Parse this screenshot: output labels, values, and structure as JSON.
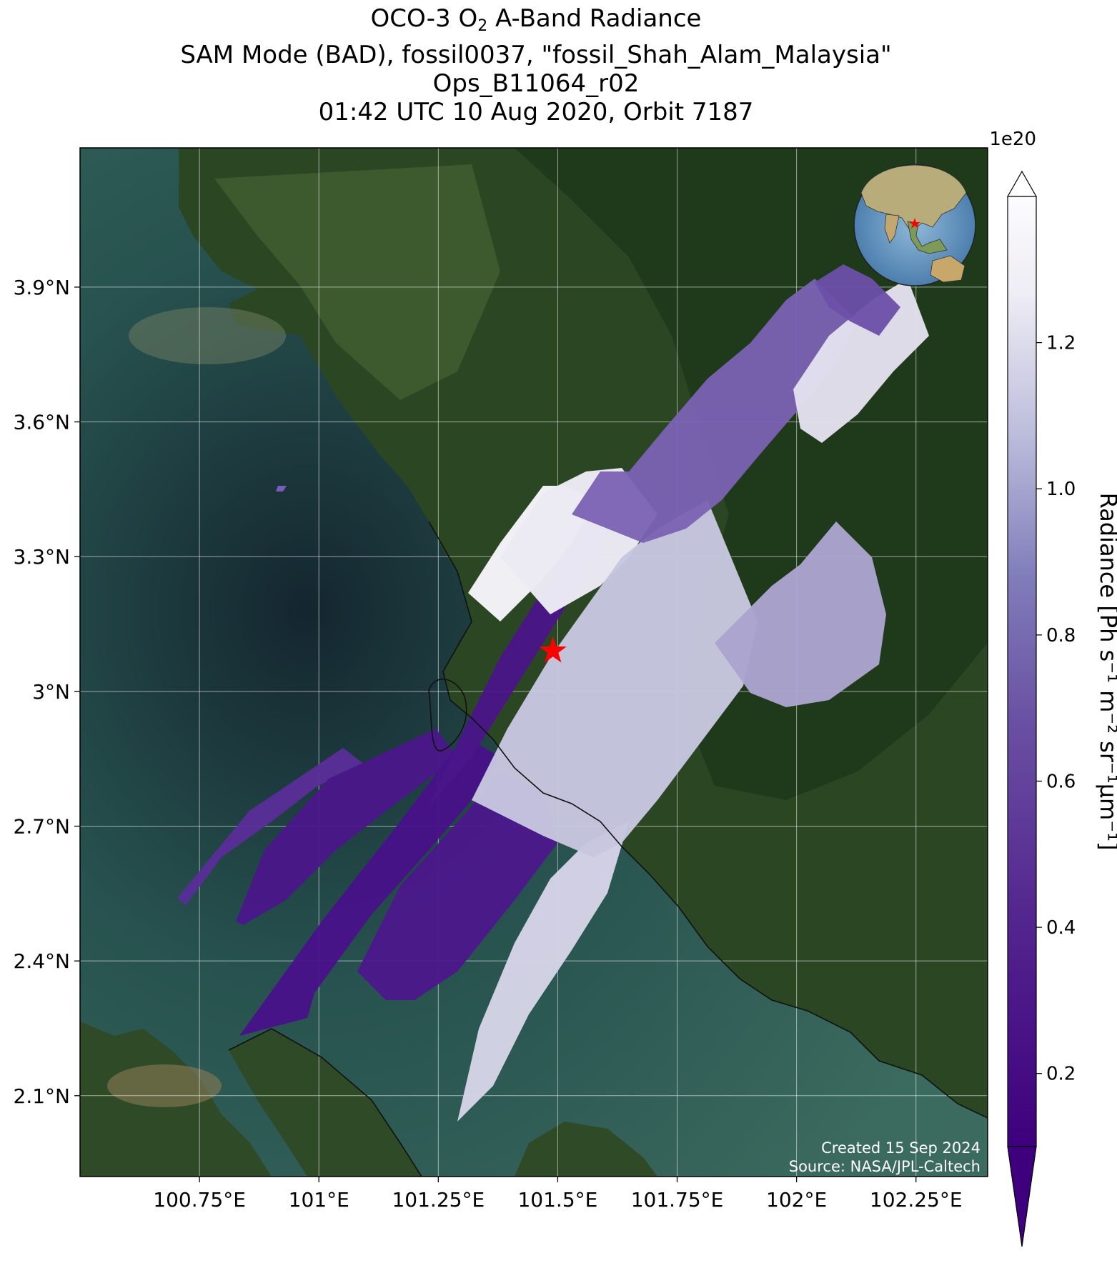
{
  "title": {
    "line1_pre": "OCO-3 O",
    "line1_sub": "2",
    "line1_post": " A-Band Radiance",
    "line2": "SAM Mode (BAD), fossil0037, \"fossil_Shah_Alam_Malaysia\"",
    "line3": "Ops_B11064_r02",
    "line4": "01:42 UTC 10 Aug 2020, Orbit 7187"
  },
  "map": {
    "lon_range": [
      100.5,
      102.4
    ],
    "lat_range": [
      1.92,
      4.21
    ],
    "lon_ticks": [
      {
        "value": 100.75,
        "label": "100.75°E"
      },
      {
        "value": 101.0,
        "label": "101°E"
      },
      {
        "value": 101.25,
        "label": "101.25°E"
      },
      {
        "value": 101.5,
        "label": "101.5°E"
      },
      {
        "value": 101.75,
        "label": "101.75°E"
      },
      {
        "value": 102.0,
        "label": "102°E"
      },
      {
        "value": 102.25,
        "label": "102.25°E"
      }
    ],
    "lat_ticks": [
      {
        "value": 2.1,
        "label": "2.1°N"
      },
      {
        "value": 2.4,
        "label": "2.4°N"
      },
      {
        "value": 2.7,
        "label": "2.7°N"
      },
      {
        "value": 3.0,
        "label": "3°N"
      },
      {
        "value": 3.3,
        "label": "3.3°N"
      },
      {
        "value": 3.6,
        "label": "3.6°N"
      },
      {
        "value": 3.9,
        "label": "3.9°N"
      }
    ],
    "target": {
      "lon": 101.49,
      "lat": 3.09,
      "marker": "red-star"
    },
    "background": "satellite-imagery",
    "colors": {
      "sea": "#23484b",
      "land": "#2c4a24",
      "target": "#ff0000"
    }
  },
  "colorbar": {
    "label": "Radiance [Ph s⁻¹ m⁻² sr⁻¹μm⁻¹]",
    "exponent_label": "1e20",
    "range": [
      0.1,
      1.4
    ],
    "ticks": [
      {
        "value": 0.2,
        "label": "0.2"
      },
      {
        "value": 0.4,
        "label": "0.4"
      },
      {
        "value": 0.6,
        "label": "0.6"
      },
      {
        "value": 0.8,
        "label": "0.8"
      },
      {
        "value": 1.0,
        "label": "1.0"
      },
      {
        "value": 1.2,
        "label": "1.2"
      }
    ],
    "colormap": "Purples_r",
    "colors": {
      "low": "#3f007d",
      "mid": "#807dba",
      "high": "#fcfbfd"
    }
  },
  "inset": {
    "type": "globe",
    "marker": "red-star"
  },
  "credits": {
    "created": "Created 15 Sep 2024",
    "source": "Source: NASA/JPL-Caltech"
  }
}
